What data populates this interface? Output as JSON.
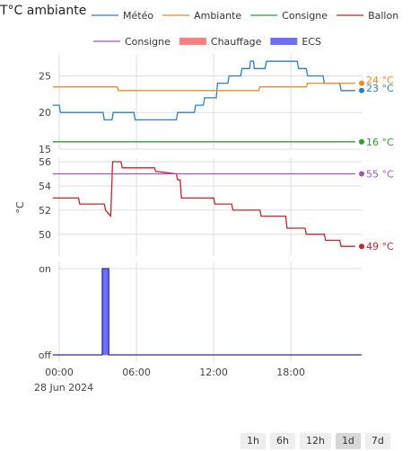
{
  "card": {
    "title": "T°C ambiante"
  },
  "legend": [
    {
      "label": "Météo",
      "color": "#2e7fb8",
      "kind": "line"
    },
    {
      "label": "Ambiante",
      "color": "#f08a24",
      "kind": "line"
    },
    {
      "label": "Consigne",
      "color": "#2ca02c",
      "kind": "line"
    },
    {
      "label": "Ballon",
      "color": "#c0262b",
      "kind": "line"
    },
    {
      "label": "Consigne",
      "color": "#9b59b6",
      "kind": "line"
    },
    {
      "label": "Chauffage",
      "color": "#ff7f7f",
      "kind": "box"
    },
    {
      "label": "ECS",
      "color": "#6f6fff",
      "kind": "box"
    }
  ],
  "range_buttons": [
    {
      "label": "1h",
      "active": false
    },
    {
      "label": "6h",
      "active": false
    },
    {
      "label": "12h",
      "active": false
    },
    {
      "label": "1d",
      "active": true
    },
    {
      "label": "7d",
      "active": false
    }
  ],
  "chart_data": [
    {
      "type": "line",
      "title": "",
      "xlim": [
        0,
        23.5
      ],
      "ylim": [
        15,
        28
      ],
      "yticks": [
        15,
        20,
        25
      ],
      "series": [
        {
          "name": "Météo",
          "color": "#2e7fb8",
          "end_label": "23 °C",
          "x": [
            -0.5,
            0,
            0.1,
            3.4,
            3.5,
            4.1,
            4.2,
            5.8,
            5.9,
            9.1,
            9.2,
            10.5,
            10.6,
            11.2,
            11.3,
            12.2,
            12.3,
            13.1,
            13.2,
            14.1,
            14.2,
            14.8,
            14.85,
            15.1,
            15.15,
            16,
            16.1,
            18.5,
            18.6,
            19.2,
            19.3,
            20.5,
            20.6,
            21.8,
            21.9,
            23
          ],
          "y": [
            21,
            21,
            20,
            20,
            19,
            19,
            20,
            20,
            19,
            19,
            20,
            20,
            21,
            21,
            22,
            22,
            24,
            24,
            25,
            25,
            26,
            26,
            27,
            27,
            26,
            26,
            27,
            27,
            26,
            26,
            25,
            25,
            24,
            24,
            23,
            23
          ]
        },
        {
          "name": "Ambiante",
          "color": "#f08a24",
          "end_label": "24 °C",
          "x": [
            -0.5,
            4.5,
            4.6,
            15.5,
            15.6,
            19.2,
            19.3,
            23
          ],
          "y": [
            23.5,
            23.5,
            23,
            23,
            23.5,
            23.5,
            24,
            24
          ]
        },
        {
          "name": "Consigne",
          "color": "#2ca02c",
          "end_label": "16 °C",
          "x": [
            -0.5,
            23
          ],
          "y": [
            16,
            16
          ]
        }
      ]
    },
    {
      "type": "line",
      "title": "",
      "ylabel": "°C",
      "xlim": [
        0,
        23.5
      ],
      "ylim": [
        48.2,
        56.3
      ],
      "yticks": [
        50,
        52,
        54,
        56
      ],
      "series": [
        {
          "name": "Ballon",
          "color": "#c0262b",
          "end_label": "49 °C",
          "x": [
            -0.5,
            1.5,
            1.6,
            3.5,
            3.6,
            4.0,
            4.15,
            4.8,
            4.9,
            7.4,
            7.5,
            9.1,
            9.2,
            9.4,
            9.5,
            12,
            12.1,
            13.4,
            13.5,
            15.6,
            15.7,
            17.6,
            17.7,
            19.1,
            19.2,
            20.6,
            20.7,
            21.8,
            21.9,
            23
          ],
          "y": [
            53,
            53,
            52.5,
            52.5,
            52,
            51.5,
            56,
            56,
            55.5,
            55.5,
            55.2,
            55,
            54.5,
            54.5,
            53,
            53,
            52.5,
            52.5,
            52,
            52,
            51.5,
            51.5,
            50.5,
            50.5,
            50,
            50,
            49.5,
            49.5,
            49,
            49
          ]
        },
        {
          "name": "Consigne",
          "color": "#9b59b6",
          "end_label": "55 °C",
          "x": [
            -0.5,
            23
          ],
          "y": [
            55,
            55
          ]
        }
      ]
    },
    {
      "type": "timeline",
      "title": "",
      "xlim": [
        0,
        23.5
      ],
      "ycategories": [
        "off",
        "on"
      ],
      "xtick_labels": [
        "00:00",
        "06:00",
        "12:00",
        "18:00"
      ],
      "xtick_values": [
        0,
        6,
        12,
        18
      ],
      "x_date_label": "28 Jun 2024",
      "series": [
        {
          "name": "ECS",
          "color": "#6f6fff",
          "edge": "#2a2aa8",
          "x": [
            -0.5,
            3.35,
            3.35,
            3.85,
            3.85,
            23.5
          ],
          "y": [
            0,
            0,
            1,
            1,
            0,
            0
          ]
        }
      ]
    }
  ]
}
